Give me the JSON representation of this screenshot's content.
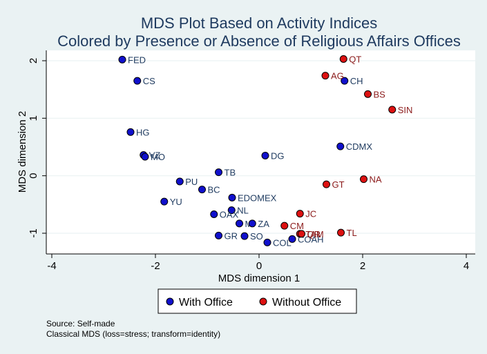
{
  "chart_data": {
    "type": "scatter",
    "title": "MDS Plot Based on Activity Indices",
    "subtitle": "Colored by Presence or Absence of Religious Affairs Offices",
    "xlabel": "MDS dimension 1",
    "ylabel": "MDS dimension 2",
    "xlim": [
      -4,
      4
    ],
    "ylim": [
      -1.25,
      2.15
    ],
    "xticks": [
      -4,
      -2,
      0,
      2,
      4
    ],
    "yticks": [
      -1,
      0,
      1,
      2
    ],
    "grid": "horizontal",
    "legend_position": "bottom",
    "colors": {
      "with_office_fill": "#1010cc",
      "with_office_label": "#1e3a5f",
      "without_office_fill": "#dd1111",
      "without_office_label": "#8b1a1a",
      "marker_edge": "#000000",
      "plot_background": "#ffffff",
      "grid": "#eaf2f3"
    },
    "series": [
      {
        "name": "With Office",
        "points": [
          {
            "label": "FED",
            "x": -2.64,
            "y": 2.02
          },
          {
            "label": "CS",
            "x": -2.35,
            "y": 1.65
          },
          {
            "label": "HG",
            "x": -2.48,
            "y": 0.76
          },
          {
            "label": "VZ",
            "x": -2.23,
            "y": 0.36
          },
          {
            "label": "MO",
            "x": -2.2,
            "y": 0.33
          },
          {
            "label": "TB",
            "x": -0.78,
            "y": 0.06
          },
          {
            "label": "DG",
            "x": 0.12,
            "y": 0.35
          },
          {
            "label": "CDMX",
            "x": 1.57,
            "y": 0.51
          },
          {
            "label": "CH",
            "x": 1.65,
            "y": 1.65
          },
          {
            "label": "PU",
            "x": -1.53,
            "y": -0.1
          },
          {
            "label": "BC",
            "x": -1.1,
            "y": -0.24
          },
          {
            "label": "EDOMEX",
            "x": -0.52,
            "y": -0.38
          },
          {
            "label": "YU",
            "x": -1.83,
            "y": -0.45
          },
          {
            "label": "NL",
            "x": -0.53,
            "y": -0.6
          },
          {
            "label": "OAX",
            "x": -0.87,
            "y": -0.67
          },
          {
            "label": "MI",
            "x": -0.38,
            "y": -0.83
          },
          {
            "label": "ZA",
            "x": -0.13,
            "y": -0.83
          },
          {
            "label": "GR",
            "x": -0.78,
            "y": -1.04
          },
          {
            "label": "SO",
            "x": -0.28,
            "y": -1.05
          },
          {
            "label": "COL",
            "x": 0.16,
            "y": -1.16
          },
          {
            "label": "COAH",
            "x": 0.64,
            "y": -1.1
          }
        ]
      },
      {
        "name": "Without Office",
        "points": [
          {
            "label": "QT",
            "x": 1.63,
            "y": 2.03
          },
          {
            "label": "AG",
            "x": 1.28,
            "y": 1.74
          },
          {
            "label": "BS",
            "x": 2.1,
            "y": 1.42
          },
          {
            "label": "SIN",
            "x": 2.57,
            "y": 1.15
          },
          {
            "label": "NA",
            "x": 2.02,
            "y": -0.06
          },
          {
            "label": "GT",
            "x": 1.3,
            "y": -0.15
          },
          {
            "label": "JC",
            "x": 0.79,
            "y": -0.66
          },
          {
            "label": "CM",
            "x": 0.49,
            "y": -0.87
          },
          {
            "label": "TAM",
            "x": 0.79,
            "y": -1.01
          },
          {
            "label": "QR",
            "x": 0.82,
            "y": -1.01
          },
          {
            "label": "TL",
            "x": 1.58,
            "y": -0.99
          }
        ]
      }
    ]
  },
  "footer": {
    "source": "Source: Self-made",
    "method": "Classical MDS (loss=stress; transform=identity)"
  }
}
